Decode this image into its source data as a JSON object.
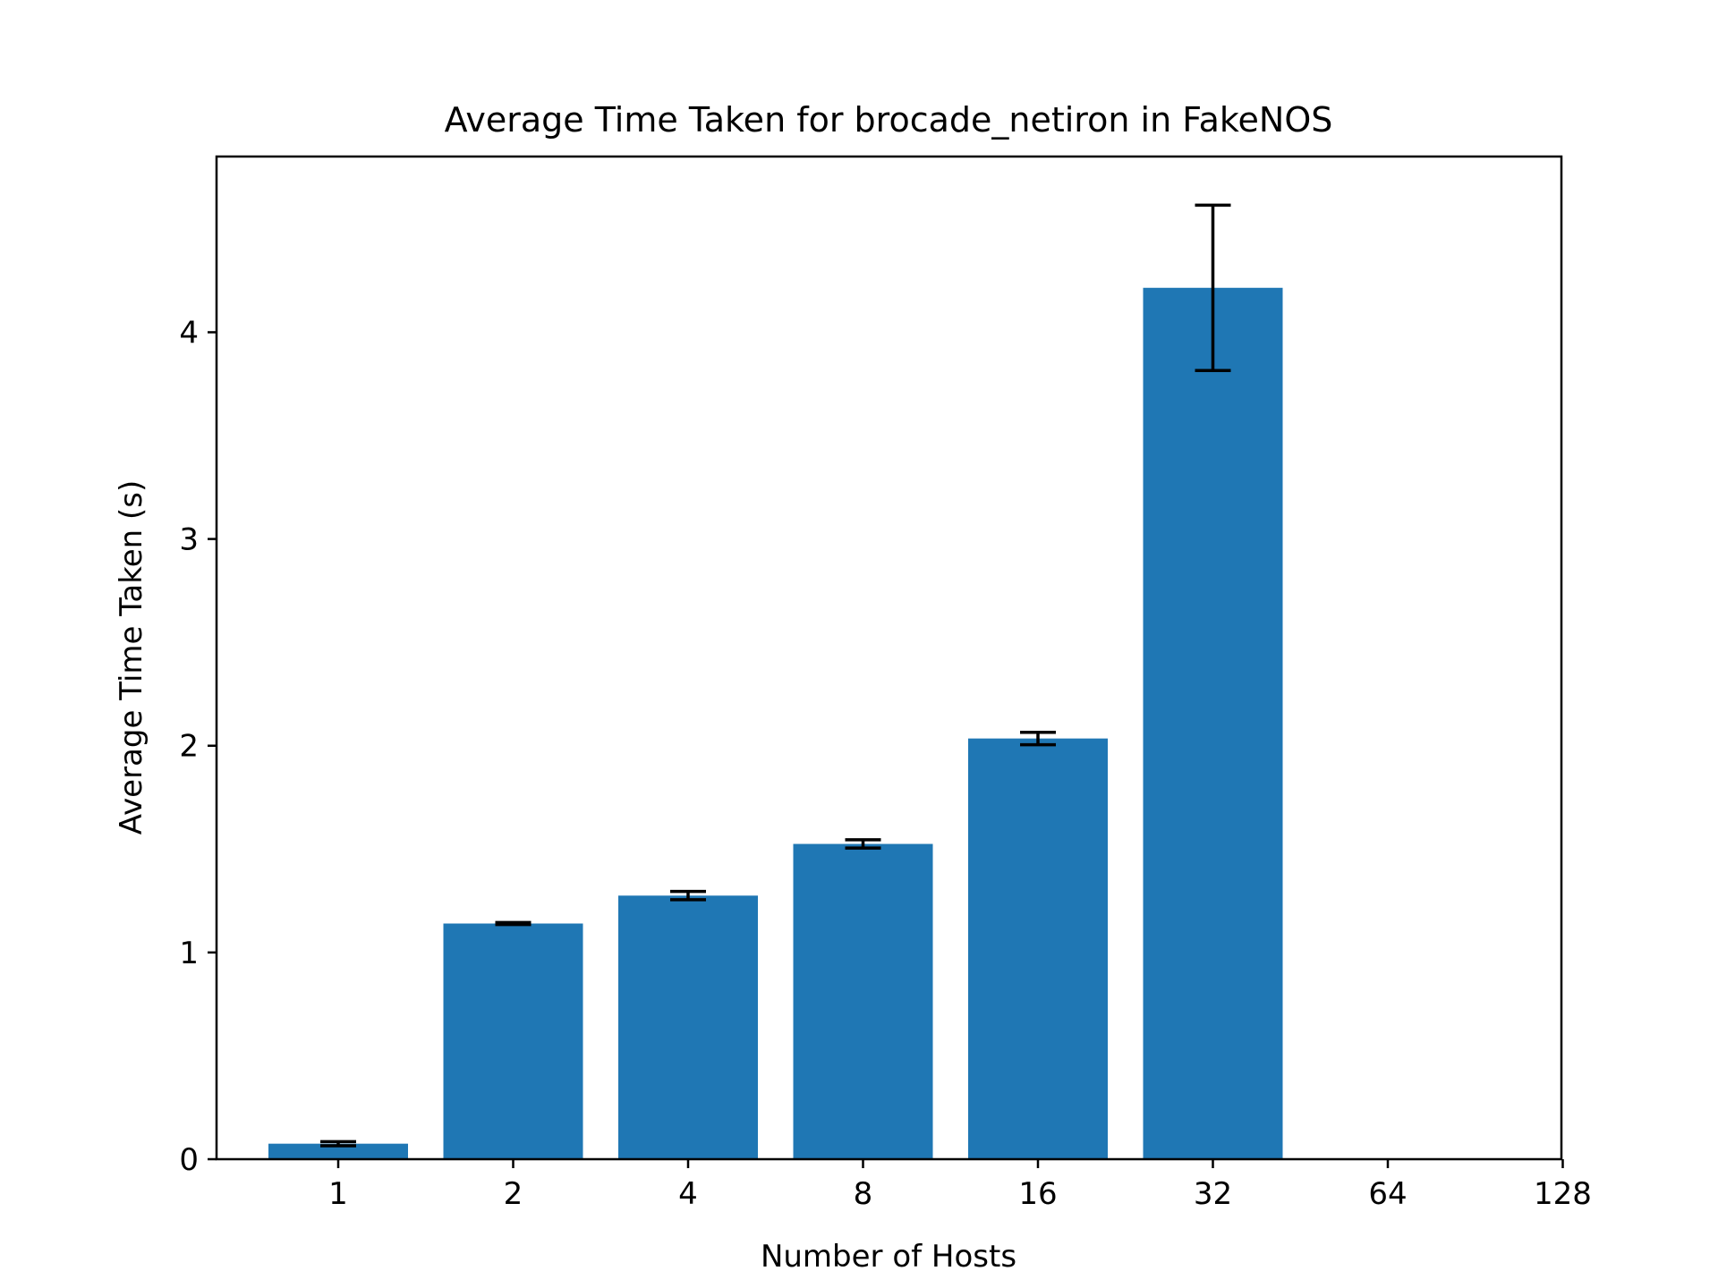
{
  "chart_data": {
    "type": "bar",
    "title": "Average Time Taken for brocade_netiron in FakeNOS",
    "xlabel": "Number of Hosts",
    "ylabel": "Average Time Taken (s)",
    "categories": [
      "1",
      "2",
      "4",
      "8",
      "16",
      "32",
      "64",
      "128"
    ],
    "values": [
      0.075,
      1.14,
      1.275,
      1.525,
      2.035,
      4.215,
      null,
      null
    ],
    "errors": [
      0.01,
      0.005,
      0.02,
      0.02,
      0.03,
      0.4,
      null,
      null
    ],
    "yticks": [
      0,
      1,
      2,
      3,
      4
    ],
    "ylim": [
      0,
      4.85
    ],
    "bar_color": "#1f77b4",
    "error_color": "#000000",
    "grid": false
  }
}
